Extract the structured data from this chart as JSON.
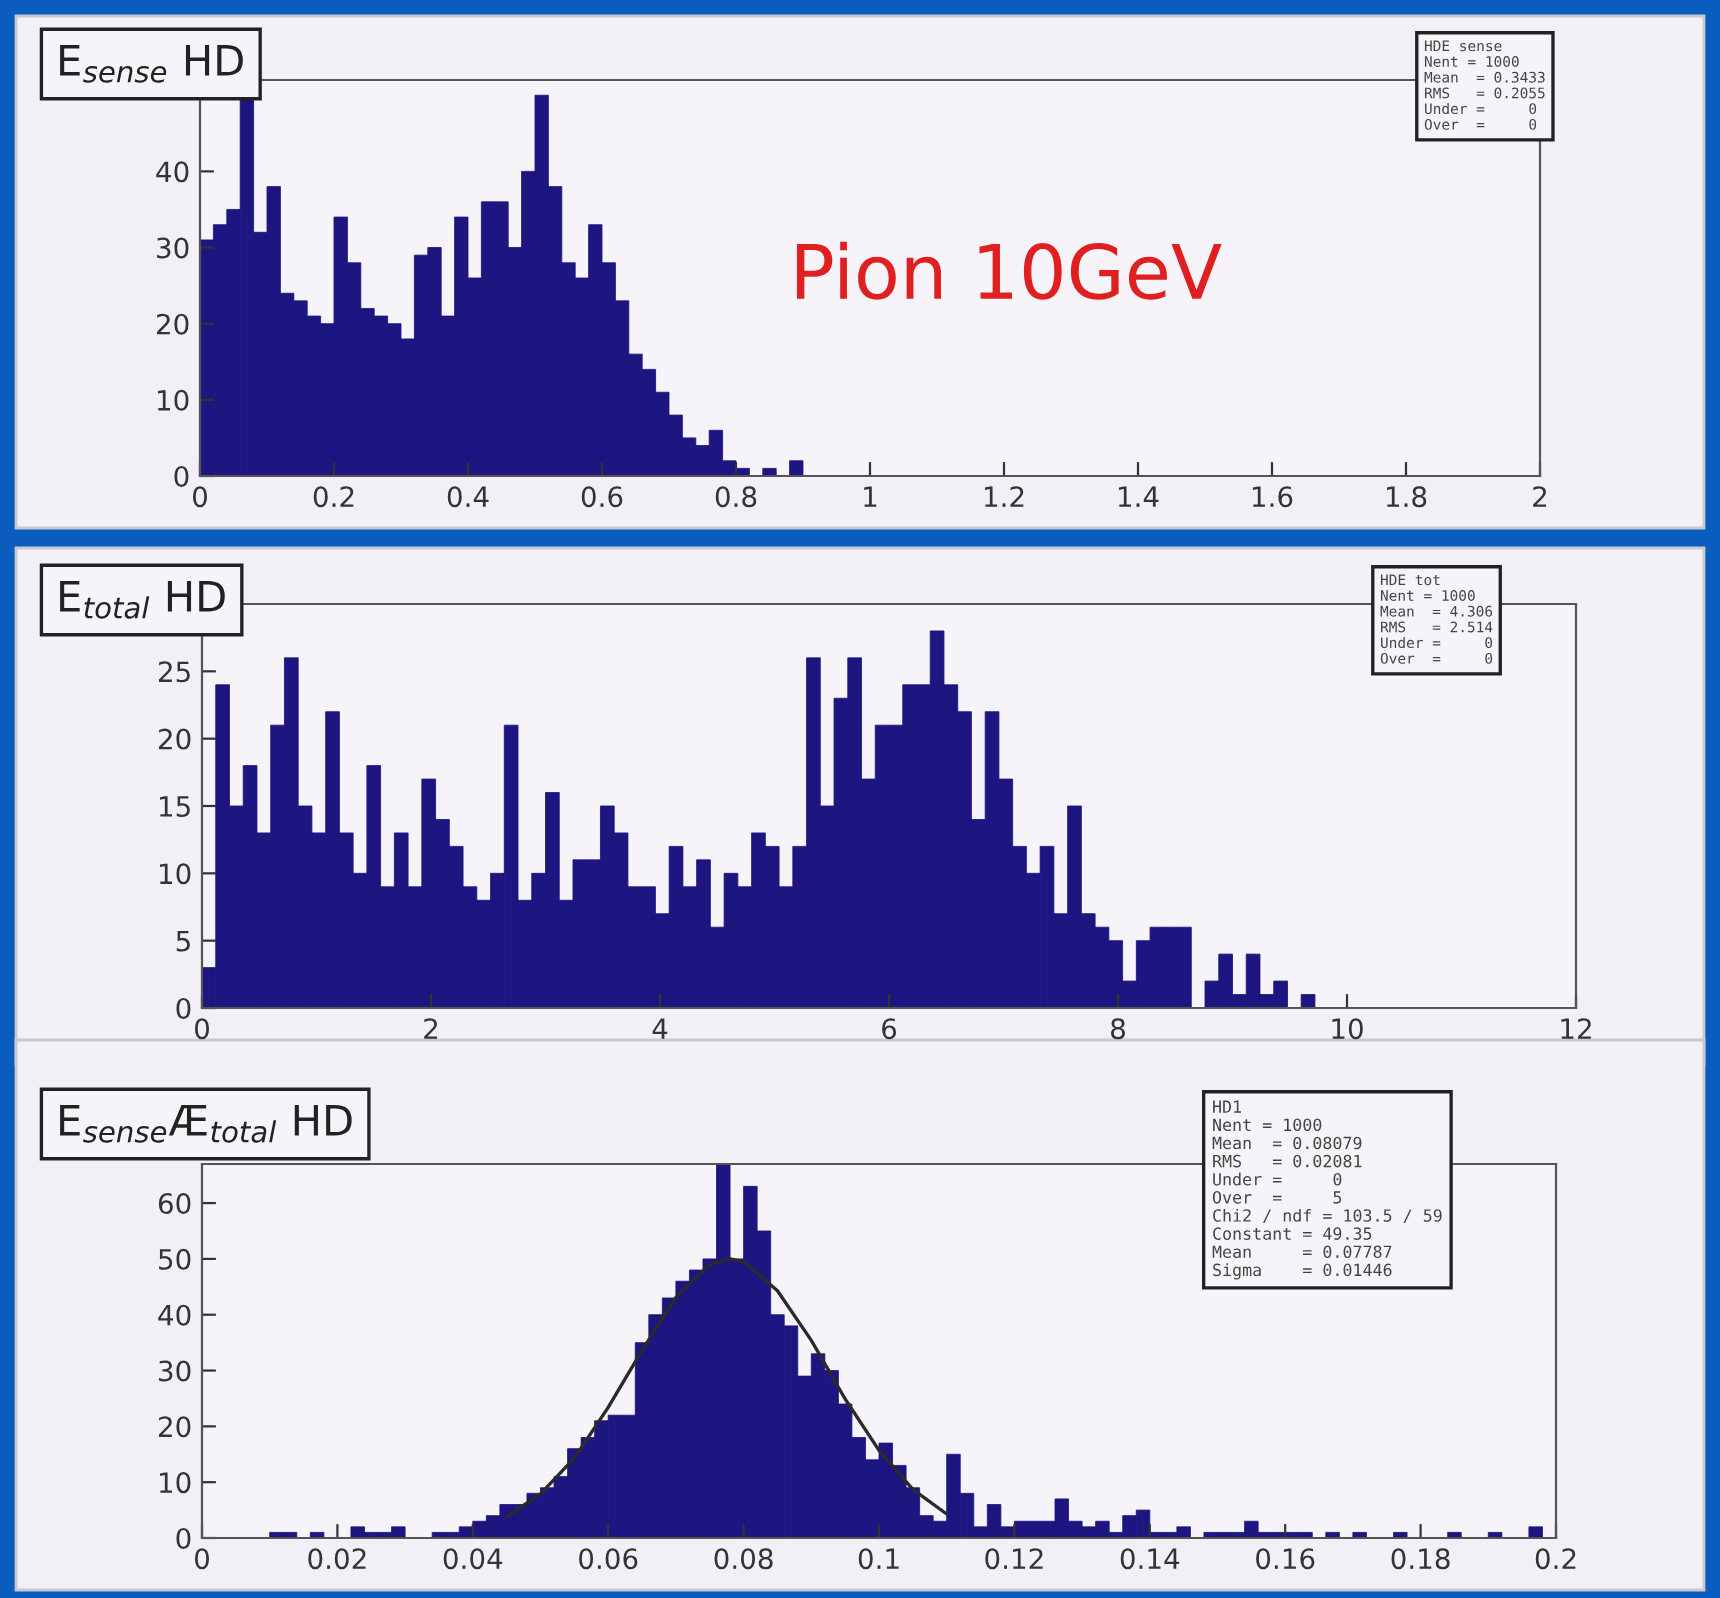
{
  "chart_data": [
    {
      "type": "histogram",
      "title": "E$_{sense}$ HD",
      "color": "#1d1580",
      "bins": [
        0,
        0.02,
        0.04,
        0.06,
        0.08,
        0.1,
        0.12,
        0.14,
        0.16,
        0.18,
        0.2,
        0.22,
        0.24,
        0.26,
        0.28,
        0.3,
        0.32,
        0.34,
        0.36,
        0.38,
        0.4,
        0.42,
        0.44,
        0.46,
        0.48,
        0.5,
        0.52,
        0.54,
        0.56,
        0.58,
        0.6,
        0.62,
        0.64,
        0.66,
        0.68,
        0.7,
        0.72,
        0.74,
        0.76,
        0.78,
        0.8,
        0.82,
        0.84,
        0.86,
        0.88,
        0.9
      ],
      "values": [
        31,
        33,
        35,
        50,
        32,
        38,
        24,
        23,
        21,
        20,
        34,
        28,
        22,
        21,
        20,
        18,
        29,
        30,
        21,
        34,
        26,
        36,
        36,
        30,
        40,
        50,
        38,
        28,
        26,
        33,
        28,
        23,
        16,
        14,
        11,
        8,
        5,
        4,
        6,
        2,
        1,
        0,
        1,
        0,
        2
      ],
      "xlim": [
        0,
        2
      ],
      "xticks": [
        0,
        0.2,
        0.4,
        0.6,
        0.8,
        1,
        1.2,
        1.4,
        1.6,
        1.8,
        2
      ],
      "ylim": [
        0,
        52
      ],
      "yticks": [
        0,
        10,
        20,
        30,
        40
      ],
      "annotations": [
        "HDE sense\nNent = 1000\nMean  = 0.3433\nRMS   = 0.2055\nUnder =     0\nOver  =     0",
        "Pion 10GeV"
      ]
    },
    {
      "type": "histogram",
      "title": "E$_{total}$ HD",
      "color": "#1d1580",
      "bins": [
        0,
        0.12,
        0.24,
        0.36,
        0.48,
        0.6,
        0.72,
        0.84,
        0.96,
        1.08,
        1.2,
        1.32,
        1.44,
        1.56,
        1.68,
        1.8,
        1.92,
        2.04,
        2.16,
        2.28,
        2.4,
        2.52,
        2.64,
        2.76,
        2.88,
        3,
        3.12,
        3.24,
        3.36,
        3.48,
        3.6,
        3.72,
        3.84,
        3.96,
        4.08,
        4.2,
        4.32,
        4.44,
        4.56,
        4.68,
        4.8,
        4.92,
        5.04,
        5.16,
        5.28,
        5.4,
        5.52,
        5.64,
        5.76,
        5.88,
        6,
        6.12,
        6.24,
        6.36,
        6.48,
        6.6,
        6.72,
        6.84,
        6.96,
        7.08,
        7.2,
        7.32,
        7.44,
        7.56,
        7.68,
        7.8,
        7.92,
        8.04,
        8.16,
        8.28,
        8.4,
        8.52,
        8.64,
        8.76,
        8.88,
        9,
        9.12,
        9.24,
        9.36,
        9.48,
        9.6,
        9.72
      ],
      "values": [
        3,
        24,
        15,
        18,
        13,
        21,
        26,
        15,
        13,
        22,
        13,
        10,
        18,
        9,
        13,
        9,
        17,
        14,
        12,
        9,
        8,
        10,
        21,
        8,
        10,
        16,
        8,
        11,
        11,
        15,
        13,
        9,
        9,
        7,
        12,
        9,
        11,
        6,
        10,
        9,
        13,
        12,
        9,
        12,
        26,
        15,
        23,
        26,
        17,
        21,
        21,
        24,
        24,
        28,
        24,
        22,
        14,
        22,
        17,
        12,
        10,
        12,
        7,
        15,
        7,
        6,
        5,
        2,
        5,
        6,
        6,
        6,
        0,
        2,
        4,
        1,
        4,
        1,
        2,
        0,
        1
      ],
      "xlim": [
        0,
        12
      ],
      "xticks": [
        0,
        2,
        4,
        6,
        8,
        10,
        12
      ],
      "ylim": [
        0,
        30
      ],
      "yticks": [
        0,
        5,
        10,
        15,
        20,
        25
      ],
      "annotations": [
        "HDE tot\nNent = 1000\nMean  = 4.306\nRMS   = 2.514\nUnder =     0\nOver  =     0"
      ]
    },
    {
      "type": "histogram",
      "title": "E$_{sense}$Æ$_{total}$ HD",
      "series": [
        {
          "type": "histogram",
          "color": "#1d1580",
          "bins": [
            0,
            0.002,
            0.004,
            0.006,
            0.008,
            0.01,
            0.012,
            0.014,
            0.016,
            0.018,
            0.02,
            0.022,
            0.024,
            0.026,
            0.028,
            0.03,
            0.032,
            0.034,
            0.036,
            0.038,
            0.04,
            0.042,
            0.044,
            0.046,
            0.048,
            0.05,
            0.052,
            0.054,
            0.056,
            0.058,
            0.06,
            0.062,
            0.064,
            0.066,
            0.068,
            0.07,
            0.072,
            0.074,
            0.076,
            0.078,
            0.08,
            0.082,
            0.084,
            0.086,
            0.088,
            0.09,
            0.092,
            0.094,
            0.096,
            0.098,
            0.1,
            0.102,
            0.104,
            0.106,
            0.108,
            0.11,
            0.112,
            0.114,
            0.116,
            0.118,
            0.12,
            0.122,
            0.124,
            0.126,
            0.128,
            0.13,
            0.132,
            0.134,
            0.136,
            0.138,
            0.14,
            0.142,
            0.144,
            0.146,
            0.148,
            0.15,
            0.152,
            0.154,
            0.156,
            0.158,
            0.16,
            0.162,
            0.164,
            0.166,
            0.168,
            0.17,
            0.172,
            0.174,
            0.176,
            0.178,
            0.18,
            0.182,
            0.184,
            0.186,
            0.188,
            0.19,
            0.192,
            0.194,
            0.196,
            0.198,
            0.2
          ],
          "values": [
            0,
            0,
            0,
            0,
            0,
            1,
            1,
            0,
            1,
            0,
            0,
            2,
            1,
            1,
            2,
            0,
            0,
            1,
            1,
            2,
            3,
            4,
            6,
            6,
            8,
            9,
            11,
            16,
            18,
            21,
            22,
            22,
            35,
            40,
            43,
            46,
            48,
            50,
            67,
            50,
            63,
            55,
            40,
            38,
            29,
            33,
            30,
            24,
            18,
            14,
            17,
            13,
            9,
            4,
            3,
            15,
            8,
            2,
            6,
            2,
            3,
            3,
            3,
            7,
            3,
            2,
            3,
            1,
            4,
            5,
            1,
            1,
            2,
            0,
            1,
            1,
            1,
            3,
            1,
            1,
            1,
            1,
            0,
            1,
            0,
            1,
            0,
            0,
            1,
            0,
            0,
            0,
            1,
            0,
            0,
            1,
            0,
            0,
            2,
            0
          ]
        },
        {
          "type": "line",
          "color": "#2a2a2a",
          "x": [
            0.045,
            0.05,
            0.055,
            0.06,
            0.065,
            0.07,
            0.075,
            0.078,
            0.08,
            0.085,
            0.09,
            0.095,
            0.1,
            0.105,
            0.11
          ],
          "values": [
            3.8,
            7.9,
            14.3,
            23.4,
            33.6,
            43.1,
            49,
            50,
            49.5,
            44.3,
            35.4,
            24.9,
            15.7,
            8.7,
            4.3
          ]
        }
      ],
      "xlim": [
        0,
        0.2
      ],
      "xticks": [
        0,
        0.02,
        0.04,
        0.06,
        0.08,
        0.1,
        0.12,
        0.14,
        0.16,
        0.18,
        0.2
      ],
      "ylim": [
        0,
        67
      ],
      "yticks": [
        0,
        10,
        20,
        30,
        40,
        50,
        60
      ],
      "annotations": [
        "HD1\nNent = 1000\nMean  = 0.08079\nRMS   = 0.02081\nUnder =     0\nOver  =     5\nChi2 / ndf = 103.5 / 59\nConstant = 49.35\nMean     = 0.07787\nSigma    = 0.01446"
      ]
    }
  ]
}
